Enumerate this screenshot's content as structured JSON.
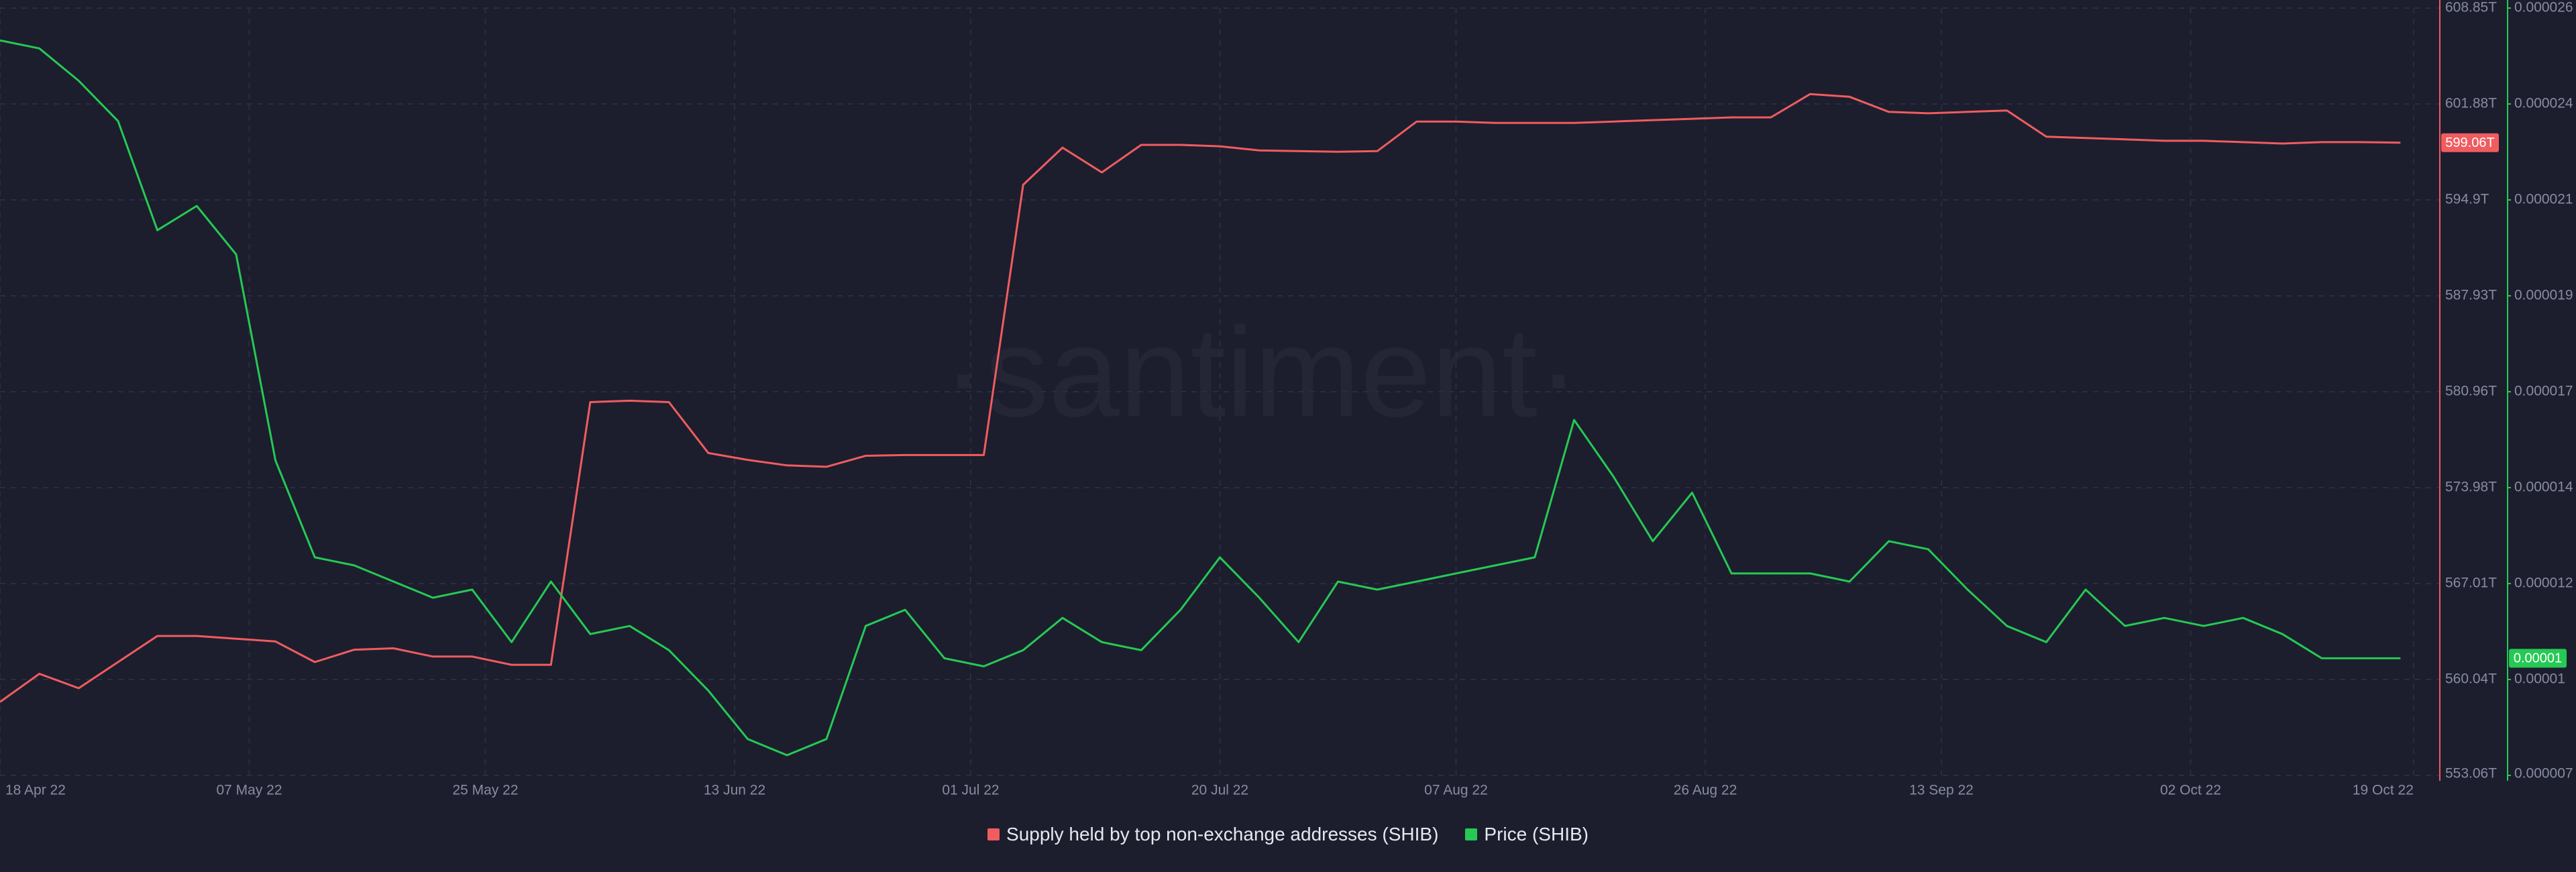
{
  "chart_data": {
    "type": "line",
    "watermark": "·santiment·",
    "x": [
      "2022-04-18",
      "2022-04-21",
      "2022-04-24",
      "2022-04-27",
      "2022-04-30",
      "2022-05-03",
      "2022-05-06",
      "2022-05-09",
      "2022-05-12",
      "2022-05-15",
      "2022-05-18",
      "2022-05-21",
      "2022-05-24",
      "2022-05-27",
      "2022-05-30",
      "2022-06-02",
      "2022-06-05",
      "2022-06-08",
      "2022-06-11",
      "2022-06-14",
      "2022-06-17",
      "2022-06-20",
      "2022-06-23",
      "2022-06-26",
      "2022-06-29",
      "2022-07-02",
      "2022-07-05",
      "2022-07-08",
      "2022-07-11",
      "2022-07-14",
      "2022-07-17",
      "2022-07-20",
      "2022-07-23",
      "2022-07-26",
      "2022-07-29",
      "2022-08-01",
      "2022-08-04",
      "2022-08-07",
      "2022-08-10",
      "2022-08-13",
      "2022-08-16",
      "2022-08-19",
      "2022-08-22",
      "2022-08-25",
      "2022-08-28",
      "2022-08-31",
      "2022-09-03",
      "2022-09-06",
      "2022-09-09",
      "2022-09-12",
      "2022-09-15",
      "2022-09-18",
      "2022-09-21",
      "2022-09-24",
      "2022-09-27",
      "2022-09-30",
      "2022-10-03",
      "2022-10-06",
      "2022-10-09",
      "2022-10-12",
      "2022-10-15",
      "2022-10-18"
    ],
    "xlim": [
      "2022-04-18",
      "2022-10-21"
    ],
    "xticks": [
      {
        "value": "2022-04-18",
        "label": "18 Apr 22"
      },
      {
        "value": "2022-05-07",
        "label": "07 May 22"
      },
      {
        "value": "2022-05-25",
        "label": "25 May 22"
      },
      {
        "value": "2022-06-13",
        "label": "13 Jun 22"
      },
      {
        "value": "2022-07-01",
        "label": "01 Jul 22"
      },
      {
        "value": "2022-07-20",
        "label": "20 Jul 22"
      },
      {
        "value": "2022-08-07",
        "label": "07 Aug 22"
      },
      {
        "value": "2022-08-26",
        "label": "26 Aug 22"
      },
      {
        "value": "2022-09-13",
        "label": "13 Sep 22"
      },
      {
        "value": "2022-10-02",
        "label": "02 Oct 22"
      },
      {
        "value": "2022-10-19",
        "label": "19 Oct 22"
      }
    ],
    "ylim": [
      553.06,
      608.85
    ],
    "yticks": [
      {
        "value": 553.06,
        "label": "553.06T"
      },
      {
        "value": 560.034,
        "label": "560.04T"
      },
      {
        "value": 567.008,
        "label": "567.01T"
      },
      {
        "value": 573.981,
        "label": "573.98T"
      },
      {
        "value": 580.955,
        "label": "580.96T"
      },
      {
        "value": 587.929,
        "label": "587.93T"
      },
      {
        "value": 594.903,
        "label": "594.9T"
      },
      {
        "value": 601.876,
        "label": "601.88T"
      },
      {
        "value": 608.85,
        "label": "608.85T"
      }
    ],
    "y2lim": [
      7e-06,
      2.6e-05
    ],
    "y2ticks": [
      {
        "value": 7e-06,
        "label": "0.000007"
      },
      {
        "value": 9.375e-06,
        "label": "0.00001"
      },
      {
        "value": 1.175e-05,
        "label": "0.000012"
      },
      {
        "value": 1.4125e-05,
        "label": "0.000014"
      },
      {
        "value": 1.65e-05,
        "label": "0.000017"
      },
      {
        "value": 1.8875e-05,
        "label": "0.000019"
      },
      {
        "value": 2.125e-05,
        "label": "0.000021"
      },
      {
        "value": 2.3625e-05,
        "label": "0.000024"
      },
      {
        "value": 2.6e-05,
        "label": "0.000026"
      }
    ],
    "grid": true,
    "legend": "bottom",
    "series": [
      {
        "name": "Supply held by top non-exchange addresses (SHIB)",
        "color": "#f05c5f",
        "axis": "y",
        "values": [
          558.4,
          560.45,
          559.4,
          561.3,
          563.2,
          563.2,
          563.0,
          562.8,
          561.3,
          562.2,
          562.3,
          561.7,
          561.7,
          561.1,
          561.1,
          580.2,
          580.3,
          580.2,
          576.5,
          576.0,
          575.6,
          575.5,
          576.3,
          576.35,
          576.35,
          576.35,
          596.0,
          598.7,
          596.9,
          598.9,
          598.9,
          598.8,
          598.5,
          598.45,
          598.4,
          598.45,
          600.6,
          600.6,
          600.5,
          600.5,
          600.5,
          600.6,
          600.7,
          600.8,
          600.9,
          600.9,
          602.6,
          602.4,
          601.3,
          601.2,
          601.3,
          601.4,
          599.5,
          599.4,
          599.3,
          599.2,
          599.2,
          599.1,
          599.0,
          599.1,
          599.1,
          599.06
        ],
        "value_labels": [
          null,
          null,
          null,
          null,
          null,
          null,
          null,
          null,
          null,
          null,
          null,
          null,
          null,
          null,
          null,
          null,
          null,
          null,
          null,
          null,
          null,
          null,
          null,
          null,
          null,
          null,
          null,
          null,
          null,
          null,
          null,
          null,
          null,
          null,
          null,
          null,
          null,
          null,
          null,
          null,
          null,
          null,
          null,
          null,
          null,
          null,
          null,
          null,
          null,
          null,
          null,
          null,
          null,
          null,
          null,
          null,
          null,
          null,
          null,
          null,
          null,
          "599.06T"
        ]
      },
      {
        "name": "Price (SHIB)",
        "color": "#26c953",
        "axis": "y2",
        "values": [
          2.52e-05,
          2.5e-05,
          2.42e-05,
          2.32e-05,
          2.05e-05,
          2.11e-05,
          1.99e-05,
          1.48e-05,
          1.24e-05,
          1.22e-05,
          1.18e-05,
          1.14e-05,
          1.16e-05,
          1.03e-05,
          1.18e-05,
          1.05e-05,
          1.07e-05,
          1.01e-05,
          9.1e-06,
          7.9e-06,
          7.5e-06,
          7.9e-06,
          1.07e-05,
          1.11e-05,
          9.9e-06,
          9.7e-06,
          1.01e-05,
          1.09e-05,
          1.03e-05,
          1.01e-05,
          1.11e-05,
          1.24e-05,
          1.14e-05,
          1.03e-05,
          1.18e-05,
          1.16e-05,
          1.18e-05,
          1.2e-05,
          1.22e-05,
          1.24e-05,
          1.58e-05,
          1.44e-05,
          1.28e-05,
          1.4e-05,
          1.2e-05,
          1.2e-05,
          1.2e-05,
          1.18e-05,
          1.28e-05,
          1.26e-05,
          1.16e-05,
          1.07e-05,
          1.03e-05,
          1.16e-05,
          1.07e-05,
          1.09e-05,
          1.07e-05,
          1.09e-05,
          1.05e-05,
          9.9e-06,
          9.9e-06,
          9.9e-06
        ],
        "value_labels": [
          null,
          null,
          null,
          null,
          null,
          null,
          null,
          null,
          null,
          null,
          null,
          null,
          null,
          null,
          null,
          null,
          null,
          null,
          null,
          null,
          null,
          null,
          null,
          null,
          null,
          null,
          null,
          null,
          null,
          null,
          null,
          null,
          null,
          null,
          null,
          null,
          null,
          null,
          null,
          null,
          null,
          null,
          null,
          null,
          null,
          null,
          null,
          null,
          null,
          null,
          null,
          null,
          null,
          null,
          null,
          null,
          null,
          null,
          null,
          null,
          null,
          "0.00001"
        ]
      }
    ]
  }
}
